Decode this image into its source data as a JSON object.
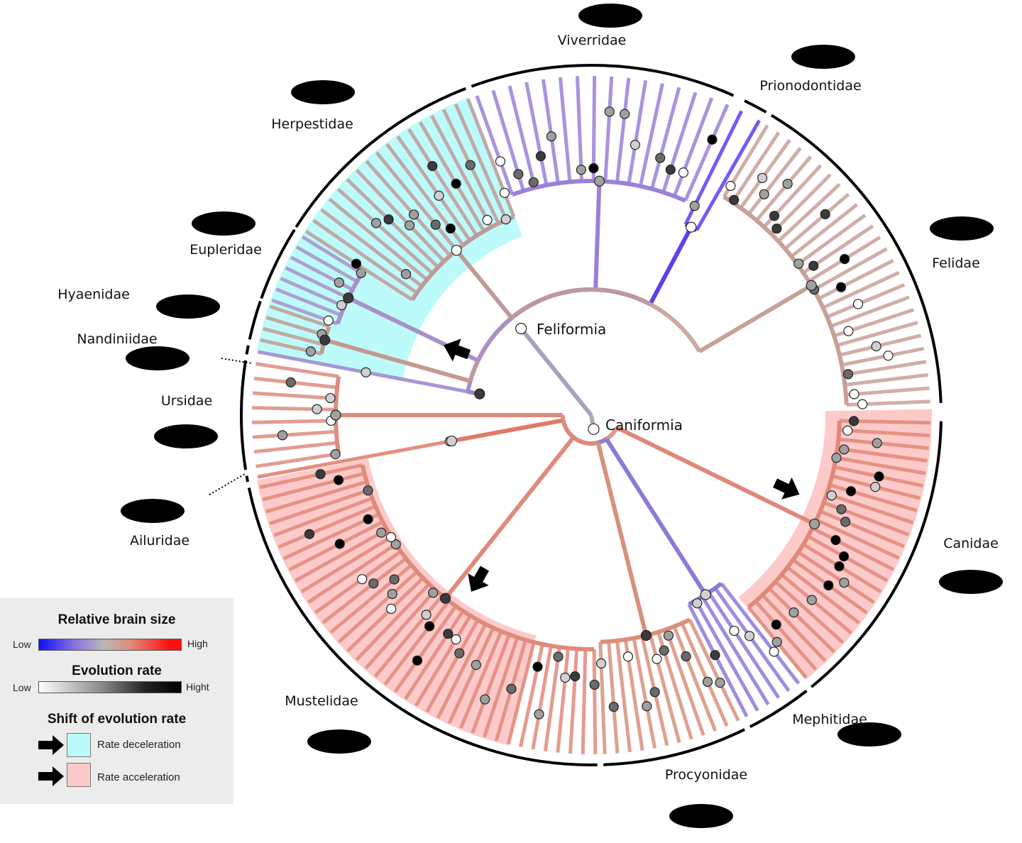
{
  "clades": {
    "feliformia": "Feliformia",
    "caniformia": "Caniformia"
  },
  "families": {
    "viverridae": "Viverridae",
    "prionodontidae": "Prionodontidae",
    "felidae": "Felidae",
    "canidae": "Canidae",
    "mephitidae": "Mephitidae",
    "procyonidae": "Procyonidae",
    "mustelidae": "Mustelidae",
    "ailuridae": "Ailuridae",
    "ursidae": "Ursidae",
    "nandiniidae": "Nandiniidae",
    "hyaenidae": "Hyaenidae",
    "eupleridae": "Eupleridae",
    "herpestidae": "Herpestidae"
  },
  "legend": {
    "brain_title": "Relative brain size",
    "brain_low": "Low",
    "brain_high": "High",
    "rate_title": "Evolution rate",
    "rate_low": "Low",
    "rate_high": "Hight",
    "shift_title": "Shift of evolution rate",
    "deceleration": "Rate deceleration",
    "acceleration": "Rate acceleration"
  },
  "colors": {
    "brain_low": "#1010ff",
    "brain_mid": "#b8b8b8",
    "brain_high": "#ff1010",
    "deceleration_fill": "#bdfbfb",
    "acceleration_fill": "#fdcaca",
    "legend_bg": "#ececec"
  }
}
